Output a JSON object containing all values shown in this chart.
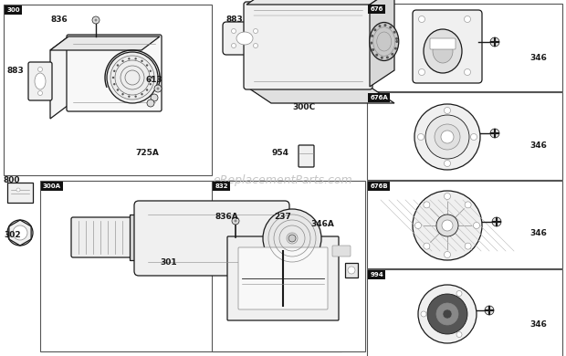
{
  "bg_color": "#ffffff",
  "line_color": "#1a1a1a",
  "gray": "#888888",
  "light_gray": "#dddddd",
  "watermark": "eReplacementParts.com",
  "watermark_color": "#bbbbbb",
  "boxes": {
    "300": [
      0.005,
      0.51,
      0.375,
      0.995
    ],
    "300A": [
      0.068,
      0.515,
      0.375,
      0.995
    ],
    "832": [
      0.368,
      0.515,
      0.635,
      0.995
    ],
    "676": [
      0.645,
      0.005,
      0.995,
      0.25
    ],
    "676A": [
      0.645,
      0.255,
      0.995,
      0.5
    ],
    "676B": [
      0.645,
      0.505,
      0.995,
      0.75
    ],
    "994": [
      0.645,
      0.755,
      0.995,
      0.995
    ]
  }
}
